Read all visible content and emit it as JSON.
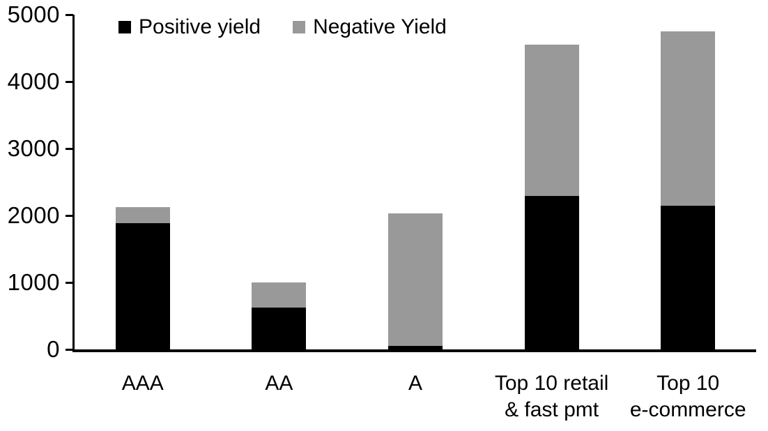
{
  "chart_data": {
    "type": "bar",
    "stacked": true,
    "title": "",
    "xlabel": "",
    "ylabel": "",
    "categories": [
      "AAA",
      "AA",
      "A",
      "Top 10 retail\n& fast pmt",
      "Top 10\ne-commerce"
    ],
    "series": [
      {
        "name": "Positive yield",
        "color": "#000000",
        "values": [
          1890,
          620,
          50,
          2290,
          2150
        ]
      },
      {
        "name": "Negative Yield",
        "color": "#999999",
        "values": [
          240,
          380,
          1980,
          2260,
          2600
        ]
      }
    ],
    "totals": [
      2130,
      1000,
      2030,
      4550,
      4750
    ],
    "ylim": [
      0,
      5000
    ],
    "yticks": [
      0,
      1000,
      2000,
      3000,
      4000,
      5000
    ],
    "grid": false,
    "legend_position": "top"
  },
  "legend": {
    "items": [
      {
        "label": "Positive yield",
        "color": "#000000"
      },
      {
        "label": "Negative Yield",
        "color": "#999999"
      }
    ]
  },
  "colors": {
    "positive": "#000000",
    "negative": "#999999",
    "axis": "#000000",
    "background": "#ffffff"
  }
}
